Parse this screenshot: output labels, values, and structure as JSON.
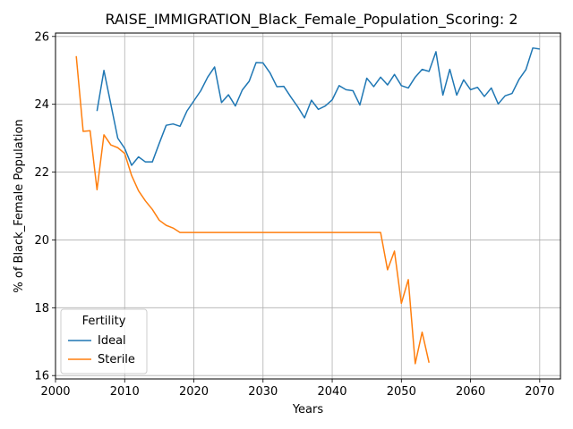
{
  "chart_data": {
    "type": "line",
    "title": "RAISE_IMMIGRATION_Black_Female_Population_Scoring: 2",
    "xlabel": "Years",
    "ylabel": "% of Black_Female Population",
    "xlim": [
      2000,
      2073
    ],
    "ylim": [
      15.9,
      26.1
    ],
    "xticks": [
      2000,
      2010,
      2020,
      2030,
      2040,
      2050,
      2060,
      2070
    ],
    "yticks": [
      16,
      18,
      20,
      22,
      24,
      26
    ],
    "grid": true,
    "legend": {
      "title": "Fertility",
      "placement": "lower-left"
    },
    "series": [
      {
        "name": "Ideal",
        "color": "#1f77b4",
        "x": [
          2006,
          2007,
          2008,
          2009,
          2010,
          2011,
          2012,
          2013,
          2014,
          2015,
          2016,
          2017,
          2018,
          2019,
          2020,
          2021,
          2022,
          2023,
          2024,
          2025,
          2026,
          2027,
          2028,
          2029,
          2030,
          2031,
          2032,
          2033,
          2034,
          2035,
          2036,
          2037,
          2038,
          2039,
          2040,
          2041,
          2042,
          2043,
          2044,
          2045,
          2046,
          2047,
          2048,
          2049,
          2050,
          2051,
          2052,
          2053,
          2054,
          2055,
          2056,
          2057,
          2058,
          2059,
          2060,
          2061,
          2062,
          2063,
          2064,
          2065,
          2066,
          2067,
          2068,
          2069,
          2070
        ],
        "y": [
          23.8,
          25.0,
          24.0,
          23.0,
          22.7,
          22.2,
          22.45,
          22.3,
          22.3,
          22.85,
          23.38,
          23.42,
          23.35,
          23.8,
          24.1,
          24.4,
          24.8,
          25.1,
          24.05,
          24.28,
          23.95,
          24.42,
          24.68,
          25.23,
          25.22,
          24.93,
          24.52,
          24.53,
          24.22,
          23.93,
          23.6,
          24.12,
          23.85,
          23.95,
          24.13,
          24.55,
          24.43,
          24.4,
          23.98,
          24.77,
          24.52,
          24.8,
          24.57,
          24.88,
          24.55,
          24.48,
          24.8,
          25.03,
          24.97,
          25.55,
          24.27,
          25.03,
          24.27,
          24.72,
          24.43,
          24.5,
          24.23,
          24.48,
          24.01,
          24.25,
          24.32,
          24.73,
          25.02,
          25.66,
          25.63
        ]
      },
      {
        "name": "Sterile",
        "color": "#ff7f0e",
        "x": [
          2003,
          2004,
          2005,
          2006,
          2007,
          2008,
          2009,
          2010,
          2011,
          2012,
          2013,
          2014,
          2015,
          2016,
          2017,
          2018,
          2019,
          2020,
          2025,
          2030,
          2035,
          2040,
          2045,
          2047,
          2048,
          2049,
          2050,
          2051,
          2052,
          2053,
          2054
        ],
        "y": [
          25.42,
          23.2,
          23.22,
          21.48,
          23.1,
          22.8,
          22.72,
          22.55,
          21.9,
          21.45,
          21.15,
          20.9,
          20.58,
          20.43,
          20.35,
          20.22,
          20.22,
          20.22,
          20.22,
          20.22,
          20.22,
          20.22,
          20.22,
          20.22,
          19.12,
          19.67,
          18.13,
          18.83,
          16.35,
          17.28,
          16.38
        ]
      }
    ]
  }
}
